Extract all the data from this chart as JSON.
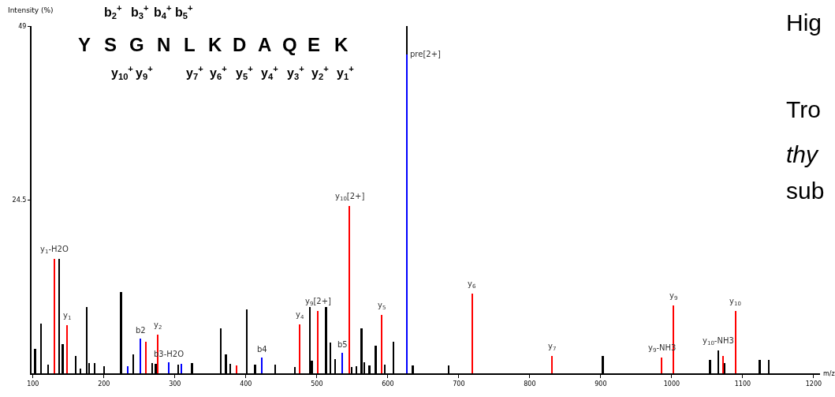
{
  "chart_data": {
    "type": "bar",
    "ylabel": "Intensity (%)",
    "xlabel": "m/z",
    "xlim": [
      98,
      1209
    ],
    "xticks": [
      100,
      200,
      300,
      400,
      500,
      600,
      700,
      800,
      900,
      1000,
      1100,
      1200
    ],
    "ylim": [
      0,
      49
    ],
    "yticks": [
      24.5,
      49
    ],
    "series": [
      {
        "color": "#000000",
        "x": [
          103,
          111,
          121,
          137,
          142,
          160,
          167,
          176,
          179,
          187,
          200,
          224,
          241,
          268,
          273,
          305,
          324,
          365,
          372,
          378,
          401,
          413,
          441,
          469,
          490,
          493,
          513,
          519,
          526,
          549,
          556,
          563,
          567,
          574,
          583,
          596,
          608,
          627,
          635,
          686,
          903,
          1054,
          1066,
          1074,
          1124,
          1137
        ],
        "values": [
          3.5,
          7.0,
          1.2,
          16.1,
          4.1,
          2.4,
          0.7,
          9.3,
          1.4,
          1.5,
          1.0,
          11.5,
          2.7,
          1.5,
          1.3,
          1.2,
          1.4,
          6.3,
          2.7,
          1.3,
          9.0,
          1.2,
          1.2,
          0.9,
          9.4,
          1.8,
          9.4,
          4.3,
          2.0,
          0.9,
          1.0,
          6.3,
          1.6,
          1.1,
          3.9,
          1.2,
          4.5,
          49,
          1.1,
          1.1,
          2.5,
          1.9,
          3.2,
          1.5,
          1.9,
          1.9
        ]
      },
      {
        "color": "#ff0000",
        "x": [
          130,
          148,
          259,
          276,
          387,
          476,
          502,
          546,
          591,
          719,
          831,
          986,
          1002,
          1072,
          1090
        ],
        "values": [
          16.1,
          6.8,
          4.4,
          5.5,
          1.1,
          6.9,
          8.8,
          23.6,
          8.2,
          11.2,
          2.4,
          2.2,
          9.6,
          2.4,
          8.8
        ]
      },
      {
        "color": "#0000ff",
        "x": [
          234,
          252,
          291,
          309,
          423,
          536,
          627
        ],
        "values": [
          1.0,
          4.9,
          1.6,
          1.3,
          2.2,
          2.9,
          45.0
        ]
      }
    ],
    "annotations": [
      {
        "text": "y$_{1}$-H2O",
        "x": 130,
        "y": 16.1
      },
      {
        "text": "y$_{1}$",
        "x": 148,
        "y": 6.8
      },
      {
        "text": "b2",
        "x": 252,
        "y": 4.9
      },
      {
        "text": "y$_{2}$",
        "x": 276,
        "y": 5.5
      },
      {
        "text": "b3-H2O",
        "x": 291,
        "y": 1.6
      },
      {
        "text": "b4",
        "x": 423,
        "y": 2.2
      },
      {
        "text": "y$_{4}$",
        "x": 476,
        "y": 6.9
      },
      {
        "text": "y$_{9}$[2+]",
        "x": 502,
        "y": 8.8
      },
      {
        "text": "b5",
        "x": 536,
        "y": 2.9
      },
      {
        "text": "y$_{10}$[2+]",
        "x": 546,
        "y": 23.6
      },
      {
        "text": "y$_{5}$",
        "x": 591,
        "y": 8.2
      },
      {
        "text": "pre[2+]",
        "x": 627,
        "y": 45.0
      },
      {
        "text": "y$_{6}$",
        "x": 719,
        "y": 11.2
      },
      {
        "text": "y$_{7}$",
        "x": 831,
        "y": 2.4
      },
      {
        "text": "y$_{9}$-NH3",
        "x": 986,
        "y": 2.2
      },
      {
        "text": "y$_{9}$",
        "x": 1002,
        "y": 9.6
      },
      {
        "text": "y$_{10}$-NH3",
        "x": 1066,
        "y": 3.2
      },
      {
        "text": "y$_{10}$",
        "x": 1090,
        "y": 8.8
      },
      "Y",
      "S",
      "G",
      "N",
      "L",
      "K",
      "D",
      "A",
      "Q",
      "E",
      "K",
      "b$_{2}$$^{+}$",
      "b$_{3}$$^{+}$",
      "b$_{4}$$^{+}$",
      "b$_{5}$$^{+}$",
      "y$_{10}$$^{+}$",
      "y$_{9}$$^{+}$",
      "y$_{7}$$^{+}$",
      "y$_{6}$$^{+}$",
      "y$_{5}$$^{+}$",
      "y$_{4}$$^{+}$",
      "y$_{3}$$^{+}$",
      "y$_{2}$$^{+}$",
      "y$_{1}$$^{+}$",
      "Hig",
      "Tro",
      "thy",
      "sub"
    ]
  }
}
